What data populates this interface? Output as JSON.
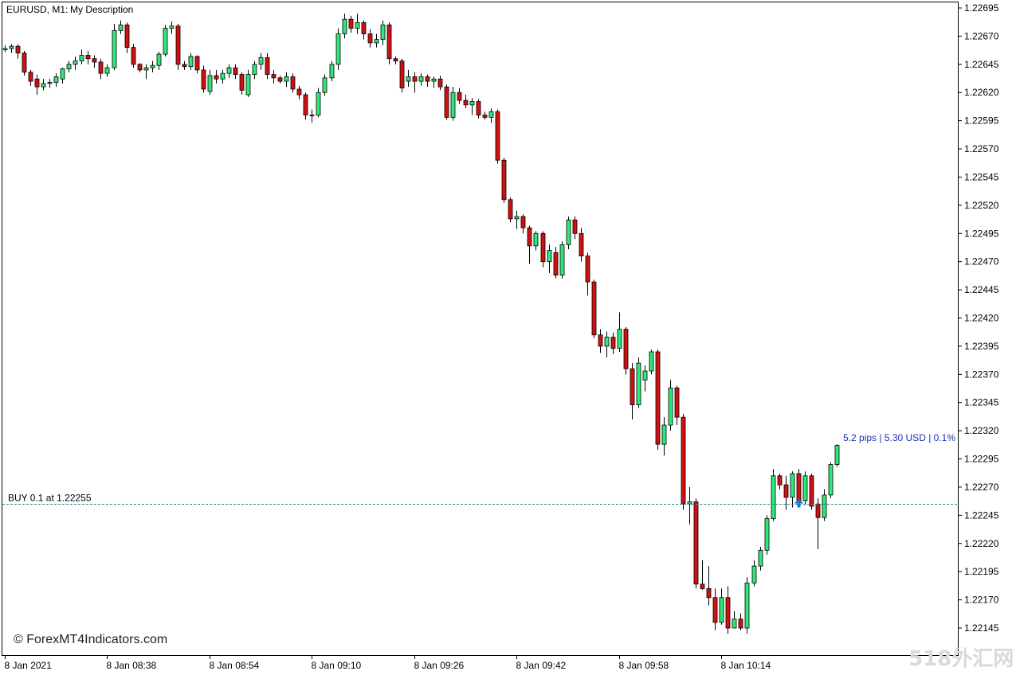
{
  "header": {
    "symbol_label": "EURUSD, M1:",
    "description": "My Description"
  },
  "trade": {
    "label": "BUY 0.1 at 1.22255",
    "price": 1.22255,
    "profit_label": "5.2 pips | 5.30 USD | 0.1%",
    "line_color": "#1f8f8f",
    "arrow_color": "#1e78d2",
    "arrow_icon": "buy-arrow-icon"
  },
  "watermark": {
    "copyright": "© ForexMT4Indicators.com",
    "site_mark": "518外汇网"
  },
  "colors": {
    "bull": "#2ee87a",
    "bear": "#d11010",
    "outline": "#000000",
    "background": "#ffffff"
  },
  "chart_data": {
    "type": "candlestick",
    "symbol": "EURUSD",
    "timeframe": "M1",
    "ylim": [
      1.2213,
      1.227
    ],
    "y_ticks": [
      "1.22695",
      "1.22670",
      "1.22645",
      "1.22620",
      "1.22595",
      "1.22570",
      "1.22545",
      "1.22520",
      "1.22495",
      "1.22470",
      "1.22445",
      "1.22420",
      "1.22395",
      "1.22370",
      "1.22345",
      "1.22320",
      "1.22295",
      "1.22270",
      "1.22245",
      "1.22220",
      "1.22195",
      "1.22170",
      "1.22145"
    ],
    "x_ticks": [
      {
        "label": "8 Jan 2021",
        "index": 0
      },
      {
        "label": "8 Jan 08:38",
        "index": 16
      },
      {
        "label": "8 Jan 08:54",
        "index": 32
      },
      {
        "label": "8 Jan 09:10",
        "index": 48
      },
      {
        "label": "8 Jan 09:26",
        "index": 64
      },
      {
        "label": "8 Jan 09:42",
        "index": 80
      },
      {
        "label": "8 Jan 09:58",
        "index": 96
      },
      {
        "label": "8 Jan 10:14",
        "index": 112
      }
    ],
    "candles": [
      {
        "o": 1.22658,
        "h": 1.22662,
        "l": 1.22656,
        "c": 1.22659
      },
      {
        "o": 1.22659,
        "h": 1.22663,
        "l": 1.22655,
        "c": 1.22661
      },
      {
        "o": 1.22661,
        "h": 1.22663,
        "l": 1.2265,
        "c": 1.22655
      },
      {
        "o": 1.22655,
        "h": 1.22657,
        "l": 1.22635,
        "c": 1.22638
      },
      {
        "o": 1.22638,
        "h": 1.2264,
        "l": 1.22626,
        "c": 1.2263
      },
      {
        "o": 1.22632,
        "h": 1.22636,
        "l": 1.22618,
        "c": 1.22625
      },
      {
        "o": 1.22625,
        "h": 1.22632,
        "l": 1.22622,
        "c": 1.22628
      },
      {
        "o": 1.22628,
        "h": 1.22632,
        "l": 1.22624,
        "c": 1.22629
      },
      {
        "o": 1.22629,
        "h": 1.22637,
        "l": 1.22625,
        "c": 1.22634
      },
      {
        "o": 1.22632,
        "h": 1.22642,
        "l": 1.22628,
        "c": 1.22641
      },
      {
        "o": 1.22641,
        "h": 1.22648,
        "l": 1.22638,
        "c": 1.22645
      },
      {
        "o": 1.22645,
        "h": 1.22652,
        "l": 1.2264,
        "c": 1.22648
      },
      {
        "o": 1.22648,
        "h": 1.22658,
        "l": 1.22645,
        "c": 1.22653
      },
      {
        "o": 1.22653,
        "h": 1.22657,
        "l": 1.22645,
        "c": 1.2265
      },
      {
        "o": 1.2265,
        "h": 1.22653,
        "l": 1.22642,
        "c": 1.22647
      },
      {
        "o": 1.22647,
        "h": 1.2265,
        "l": 1.22632,
        "c": 1.22637
      },
      {
        "o": 1.22637,
        "h": 1.22645,
        "l": 1.22634,
        "c": 1.22642
      },
      {
        "o": 1.22642,
        "h": 1.22681,
        "l": 1.2264,
        "c": 1.22675
      },
      {
        "o": 1.22675,
        "h": 1.22684,
        "l": 1.22672,
        "c": 1.2268
      },
      {
        "o": 1.2268,
        "h": 1.22682,
        "l": 1.22655,
        "c": 1.2266
      },
      {
        "o": 1.2266,
        "h": 1.22663,
        "l": 1.22642,
        "c": 1.22645
      },
      {
        "o": 1.22645,
        "h": 1.22646,
        "l": 1.22638,
        "c": 1.2264
      },
      {
        "o": 1.2264,
        "h": 1.22645,
        "l": 1.22632,
        "c": 1.22642
      },
      {
        "o": 1.22642,
        "h": 1.22648,
        "l": 1.22638,
        "c": 1.22644
      },
      {
        "o": 1.22644,
        "h": 1.22656,
        "l": 1.2264,
        "c": 1.22654
      },
      {
        "o": 1.22654,
        "h": 1.2268,
        "l": 1.22652,
        "c": 1.22677
      },
      {
        "o": 1.22677,
        "h": 1.22683,
        "l": 1.22672,
        "c": 1.22679
      },
      {
        "o": 1.22679,
        "h": 1.22681,
        "l": 1.2264,
        "c": 1.22645
      },
      {
        "o": 1.22645,
        "h": 1.22648,
        "l": 1.2264,
        "c": 1.22643
      },
      {
        "o": 1.22643,
        "h": 1.22655,
        "l": 1.2264,
        "c": 1.22652
      },
      {
        "o": 1.22652,
        "h": 1.22653,
        "l": 1.22637,
        "c": 1.2264
      },
      {
        "o": 1.2264,
        "h": 1.22644,
        "l": 1.2262,
        "c": 1.22623
      },
      {
        "o": 1.22621,
        "h": 1.2264,
        "l": 1.22618,
        "c": 1.22635
      },
      {
        "o": 1.22635,
        "h": 1.2264,
        "l": 1.22628,
        "c": 1.22632
      },
      {
        "o": 1.22632,
        "h": 1.2264,
        "l": 1.22628,
        "c": 1.22637
      },
      {
        "o": 1.22637,
        "h": 1.22645,
        "l": 1.22633,
        "c": 1.22642
      },
      {
        "o": 1.22642,
        "h": 1.22645,
        "l": 1.22632,
        "c": 1.22636
      },
      {
        "o": 1.22636,
        "h": 1.22638,
        "l": 1.22618,
        "c": 1.22622
      },
      {
        "o": 1.22618,
        "h": 1.2264,
        "l": 1.22616,
        "c": 1.22636
      },
      {
        "o": 1.22636,
        "h": 1.22648,
        "l": 1.22632,
        "c": 1.22645
      },
      {
        "o": 1.22645,
        "h": 1.22655,
        "l": 1.2264,
        "c": 1.22651
      },
      {
        "o": 1.22651,
        "h": 1.22655,
        "l": 1.22632,
        "c": 1.22636
      },
      {
        "o": 1.22636,
        "h": 1.2264,
        "l": 1.22628,
        "c": 1.22633
      },
      {
        "o": 1.22633,
        "h": 1.22635,
        "l": 1.22628,
        "c": 1.2263
      },
      {
        "o": 1.2263,
        "h": 1.22638,
        "l": 1.22625,
        "c": 1.22634
      },
      {
        "o": 1.22634,
        "h": 1.22637,
        "l": 1.2262,
        "c": 1.22623
      },
      {
        "o": 1.22623,
        "h": 1.22626,
        "l": 1.22614,
        "c": 1.22618
      },
      {
        "o": 1.22618,
        "h": 1.2262,
        "l": 1.22596,
        "c": 1.226
      },
      {
        "o": 1.226,
        "h": 1.22605,
        "l": 1.22593,
        "c": 1.226
      },
      {
        "o": 1.226,
        "h": 1.22624,
        "l": 1.22598,
        "c": 1.2262
      },
      {
        "o": 1.2262,
        "h": 1.22636,
        "l": 1.22617,
        "c": 1.22633
      },
      {
        "o": 1.22633,
        "h": 1.22648,
        "l": 1.2263,
        "c": 1.22645
      },
      {
        "o": 1.22645,
        "h": 1.22677,
        "l": 1.2264,
        "c": 1.22672
      },
      {
        "o": 1.22672,
        "h": 1.2269,
        "l": 1.22668,
        "c": 1.22685
      },
      {
        "o": 1.22685,
        "h": 1.22688,
        "l": 1.22673,
        "c": 1.22677
      },
      {
        "o": 1.22677,
        "h": 1.2269,
        "l": 1.22672,
        "c": 1.22682
      },
      {
        "o": 1.22682,
        "h": 1.22684,
        "l": 1.22667,
        "c": 1.22672
      },
      {
        "o": 1.22672,
        "h": 1.22676,
        "l": 1.2266,
        "c": 1.22664
      },
      {
        "o": 1.22664,
        "h": 1.22672,
        "l": 1.2266,
        "c": 1.22667
      },
      {
        "o": 1.22667,
        "h": 1.22684,
        "l": 1.22662,
        "c": 1.2268
      },
      {
        "o": 1.2268,
        "h": 1.22682,
        "l": 1.22645,
        "c": 1.2265
      },
      {
        "o": 1.2265,
        "h": 1.22652,
        "l": 1.22645,
        "c": 1.22648
      },
      {
        "o": 1.22648,
        "h": 1.2265,
        "l": 1.2262,
        "c": 1.22624
      },
      {
        "o": 1.2263,
        "h": 1.2264,
        "l": 1.22625,
        "c": 1.22634
      },
      {
        "o": 1.22634,
        "h": 1.22638,
        "l": 1.2262,
        "c": 1.2263
      },
      {
        "o": 1.2263,
        "h": 1.22637,
        "l": 1.22626,
        "c": 1.22634
      },
      {
        "o": 1.22634,
        "h": 1.22636,
        "l": 1.22625,
        "c": 1.2263
      },
      {
        "o": 1.2263,
        "h": 1.22634,
        "l": 1.22624,
        "c": 1.22632
      },
      {
        "o": 1.22632,
        "h": 1.22635,
        "l": 1.22622,
        "c": 1.22625
      },
      {
        "o": 1.22625,
        "h": 1.22627,
        "l": 1.22596,
        "c": 1.22598
      },
      {
        "o": 1.22598,
        "h": 1.22625,
        "l": 1.22595,
        "c": 1.2262
      },
      {
        "o": 1.2262,
        "h": 1.22624,
        "l": 1.2261,
        "c": 1.22613
      },
      {
        "o": 1.22613,
        "h": 1.22618,
        "l": 1.22606,
        "c": 1.22609
      },
      {
        "o": 1.22609,
        "h": 1.22615,
        "l": 1.226,
        "c": 1.22612
      },
      {
        "o": 1.22612,
        "h": 1.22614,
        "l": 1.22597,
        "c": 1.226
      },
      {
        "o": 1.226,
        "h": 1.22603,
        "l": 1.22596,
        "c": 1.22598
      },
      {
        "o": 1.22598,
        "h": 1.22606,
        "l": 1.22593,
        "c": 1.22603
      },
      {
        "o": 1.22603,
        "h": 1.22605,
        "l": 1.22557,
        "c": 1.2256
      },
      {
        "o": 1.2256,
        "h": 1.22562,
        "l": 1.22522,
        "c": 1.22525
      },
      {
        "o": 1.22525,
        "h": 1.22527,
        "l": 1.22505,
        "c": 1.22508
      },
      {
        "o": 1.22508,
        "h": 1.22515,
        "l": 1.22499,
        "c": 1.2251
      },
      {
        "o": 1.2251,
        "h": 1.22512,
        "l": 1.22495,
        "c": 1.225
      },
      {
        "o": 1.225,
        "h": 1.22502,
        "l": 1.22468,
        "c": 1.22484
      },
      {
        "o": 1.22484,
        "h": 1.22497,
        "l": 1.2248,
        "c": 1.22495
      },
      {
        "o": 1.22495,
        "h": 1.22497,
        "l": 1.22465,
        "c": 1.2247
      },
      {
        "o": 1.2247,
        "h": 1.22485,
        "l": 1.2246,
        "c": 1.2248
      },
      {
        "o": 1.22478,
        "h": 1.22483,
        "l": 1.22455,
        "c": 1.22458
      },
      {
        "o": 1.22458,
        "h": 1.22488,
        "l": 1.22455,
        "c": 1.22485
      },
      {
        "o": 1.22485,
        "h": 1.2251,
        "l": 1.22481,
        "c": 1.22507
      },
      {
        "o": 1.22507,
        "h": 1.2251,
        "l": 1.2249,
        "c": 1.22495
      },
      {
        "o": 1.22495,
        "h": 1.225,
        "l": 1.2247,
        "c": 1.22475
      },
      {
        "o": 1.22475,
        "h": 1.22478,
        "l": 1.2244,
        "c": 1.22452
      },
      {
        "o": 1.22452,
        "h": 1.22454,
        "l": 1.22402,
        "c": 1.22405
      },
      {
        "o": 1.22405,
        "h": 1.2241,
        "l": 1.22389,
        "c": 1.22395
      },
      {
        "o": 1.22395,
        "h": 1.22408,
        "l": 1.22385,
        "c": 1.22403
      },
      {
        "o": 1.22403,
        "h": 1.22407,
        "l": 1.22388,
        "c": 1.22393
      },
      {
        "o": 1.22393,
        "h": 1.22425,
        "l": 1.2239,
        "c": 1.2241
      },
      {
        "o": 1.2241,
        "h": 1.22412,
        "l": 1.2237,
        "c": 1.22375
      },
      {
        "o": 1.22375,
        "h": 1.2238,
        "l": 1.2233,
        "c": 1.22343
      },
      {
        "o": 1.22343,
        "h": 1.22385,
        "l": 1.2234,
        "c": 1.2238
      },
      {
        "o": 1.22365,
        "h": 1.22378,
        "l": 1.22355,
        "c": 1.22373
      },
      {
        "o": 1.22373,
        "h": 1.22392,
        "l": 1.2237,
        "c": 1.2239
      },
      {
        "o": 1.2239,
        "h": 1.22392,
        "l": 1.22303,
        "c": 1.22308
      },
      {
        "o": 1.22308,
        "h": 1.22332,
        "l": 1.22298,
        "c": 1.22325
      },
      {
        "o": 1.22325,
        "h": 1.22365,
        "l": 1.2232,
        "c": 1.22358
      },
      {
        "o": 1.22358,
        "h": 1.2236,
        "l": 1.22325,
        "c": 1.22332
      },
      {
        "o": 1.22332,
        "h": 1.22335,
        "l": 1.2225,
        "c": 1.22255
      },
      {
        "o": 1.22255,
        "h": 1.2227,
        "l": 1.22237,
        "c": 1.22257
      },
      {
        "o": 1.22257,
        "h": 1.2226,
        "l": 1.2218,
        "c": 1.22184
      },
      {
        "o": 1.22184,
        "h": 1.22205,
        "l": 1.22179,
        "c": 1.2218
      },
      {
        "o": 1.2218,
        "h": 1.222,
        "l": 1.22165,
        "c": 1.22172
      },
      {
        "o": 1.22172,
        "h": 1.2218,
        "l": 1.22143,
        "c": 1.2215
      },
      {
        "o": 1.2215,
        "h": 1.2218,
        "l": 1.22148,
        "c": 1.22172
      },
      {
        "o": 1.22172,
        "h": 1.22182,
        "l": 1.2214,
        "c": 1.22145
      },
      {
        "o": 1.22145,
        "h": 1.2216,
        "l": 1.22148,
        "c": 1.22153
      },
      {
        "o": 1.22153,
        "h": 1.22158,
        "l": 1.22143,
        "c": 1.22145
      },
      {
        "o": 1.22145,
        "h": 1.2219,
        "l": 1.2214,
        "c": 1.22185
      },
      {
        "o": 1.22185,
        "h": 1.22205,
        "l": 1.22182,
        "c": 1.222
      },
      {
        "o": 1.222,
        "h": 1.22217,
        "l": 1.22196,
        "c": 1.22214
      },
      {
        "o": 1.22214,
        "h": 1.22245,
        "l": 1.2221,
        "c": 1.22242
      },
      {
        "o": 1.22242,
        "h": 1.22286,
        "l": 1.2224,
        "c": 1.2228
      },
      {
        "o": 1.2228,
        "h": 1.22282,
        "l": 1.22268,
        "c": 1.22272
      },
      {
        "o": 1.22272,
        "h": 1.2228,
        "l": 1.2225,
        "c": 1.22261
      },
      {
        "o": 1.22261,
        "h": 1.22284,
        "l": 1.22252,
        "c": 1.22282
      },
      {
        "o": 1.22282,
        "h": 1.22286,
        "l": 1.22255,
        "c": 1.22258
      },
      {
        "o": 1.22258,
        "h": 1.22284,
        "l": 1.22254,
        "c": 1.2228
      },
      {
        "o": 1.2228,
        "h": 1.22282,
        "l": 1.2225,
        "c": 1.22253
      },
      {
        "o": 1.22255,
        "h": 1.2226,
        "l": 1.22215,
        "c": 1.22243
      },
      {
        "o": 1.22243,
        "h": 1.22268,
        "l": 1.2224,
        "c": 1.22263
      },
      {
        "o": 1.22263,
        "h": 1.22292,
        "l": 1.2226,
        "c": 1.2229
      },
      {
        "o": 1.2229,
        "h": 1.22308,
        "l": 1.22288,
        "c": 1.22307
      }
    ]
  }
}
